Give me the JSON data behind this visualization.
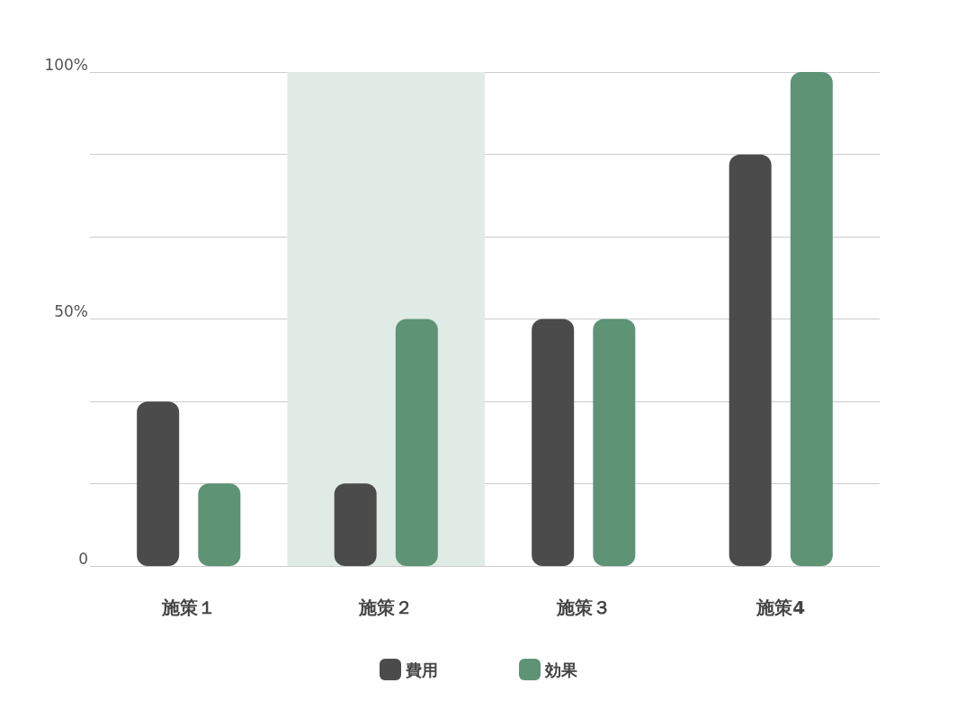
{
  "chart_data": {
    "type": "bar",
    "categories": [
      "施策１",
      "施策２",
      "施策３",
      "施策4"
    ],
    "series": [
      {
        "name": "費用",
        "color": "#4b4b4b",
        "values": [
          33.3,
          16.7,
          50,
          83.3
        ]
      },
      {
        "name": "効果",
        "color": "#5e9375",
        "values": [
          16.7,
          50,
          50,
          100
        ]
      }
    ],
    "ylim": [
      0,
      100
    ],
    "yticks": [
      0,
      {
        "value": 16.7,
        "label": null
      },
      {
        "value": 33.3,
        "label": null
      },
      {
        "value": 50,
        "label": "50%"
      },
      {
        "value": 66.7,
        "label": null
      },
      {
        "value": 83.3,
        "label": null
      },
      {
        "value": 100,
        "label": "100%"
      }
    ],
    "bands": [
      {
        "axis": "x",
        "from": "施策２",
        "to": "施策２",
        "color": "#e0ebe5"
      }
    ],
    "grid": "y",
    "legend": "bottom"
  }
}
